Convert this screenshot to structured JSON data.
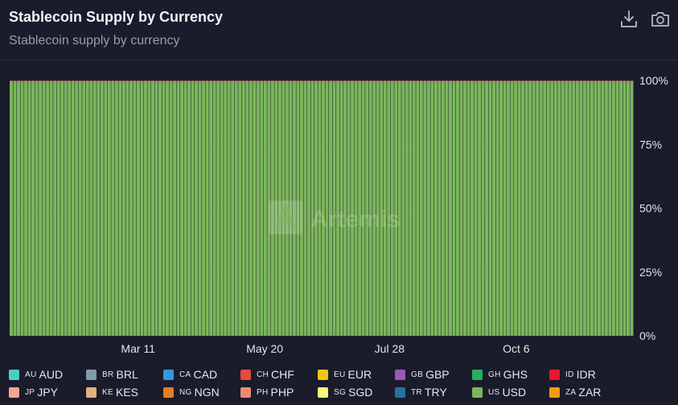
{
  "header": {
    "title": "Stablecoin Supply by Currency",
    "subtitle": "Stablecoin supply by currency",
    "download_icon": "download-icon",
    "camera_icon": "camera-icon"
  },
  "watermark": {
    "text": "Artemis"
  },
  "chart_data": {
    "type": "bar",
    "stacked": true,
    "normalized": true,
    "x_start": "2024-01-01",
    "x_end": "2024-12-09",
    "x_step_days": 2,
    "xticks": [
      "Mar 11",
      "May 20",
      "Jul 28",
      "Oct 6"
    ],
    "yticks": [
      "0%",
      "25%",
      "50%",
      "75%",
      "100%"
    ],
    "ylim": [
      0,
      100
    ],
    "grid": true,
    "legend_position": "bottom",
    "series": [
      {
        "name": "AUD",
        "flag": "AU",
        "color": "#4ecdc4",
        "share_pct": 0.05
      },
      {
        "name": "BRL",
        "flag": "BR",
        "color": "#7f9ba6",
        "share_pct": 0.02
      },
      {
        "name": "CAD",
        "flag": "CA",
        "color": "#3498db",
        "share_pct": 0.01
      },
      {
        "name": "CHF",
        "flag": "CH",
        "color": "#e74c3c",
        "share_pct": 0.04
      },
      {
        "name": "EUR",
        "flag": "EU",
        "color": "#f1c40f",
        "share_pct": 0.35
      },
      {
        "name": "GBP",
        "flag": "GB",
        "color": "#9b59b6",
        "share_pct": 0.02
      },
      {
        "name": "GHS",
        "flag": "GH",
        "color": "#27ae60",
        "share_pct": 0.01
      },
      {
        "name": "IDR",
        "flag": "ID",
        "color": "#e8192c",
        "share_pct": 0.15
      },
      {
        "name": "JPY",
        "flag": "JP",
        "color": "#f9a58f",
        "share_pct": 0.01
      },
      {
        "name": "KES",
        "flag": "KE",
        "color": "#e0b080",
        "share_pct": 0.01
      },
      {
        "name": "NGN",
        "flag": "NG",
        "color": "#e67e22",
        "share_pct": 0.01
      },
      {
        "name": "PHP",
        "flag": "PH",
        "color": "#f08a6c",
        "share_pct": 0.01
      },
      {
        "name": "SGD",
        "flag": "SG",
        "color": "#f7f77a",
        "share_pct": 0.02
      },
      {
        "name": "TRY",
        "flag": "TR",
        "color": "#2472a4",
        "share_pct": 0.01
      },
      {
        "name": "USD",
        "flag": "US",
        "color": "#7cb65c",
        "share_pct": 99.3
      },
      {
        "name": "ZAR",
        "flag": "ZA",
        "color": "#f39c12",
        "share_pct": 0.01
      }
    ]
  }
}
